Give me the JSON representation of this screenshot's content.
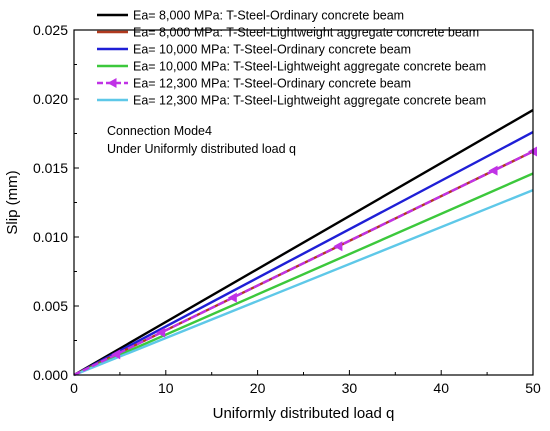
{
  "chart_data": {
    "type": "line",
    "xlabel": "Uniformly distributed load q",
    "ylabel": "Slip (mm)",
    "xlim": [
      0,
      50
    ],
    "ylim": [
      0,
      0.025
    ],
    "xticks": [
      0,
      10,
      20,
      30,
      40,
      50
    ],
    "xtick_labels": [
      "0",
      "10",
      "20",
      "30",
      "40",
      "50"
    ],
    "yticks": [
      0,
      0.005,
      0.01,
      0.015,
      0.02,
      0.025
    ],
    "ytick_labels": [
      "0.000",
      "0.005",
      "0.010",
      "0.015",
      "0.020",
      "0.025"
    ],
    "grid": false,
    "legend_position": "top",
    "annotations": [
      "Connection Mode4",
      "Under Uniformly distributed load q"
    ],
    "series": [
      {
        "name": "Ea= 8,000 MPa: T-Steel-Ordinary concrete beam",
        "color": "#000000",
        "marker": "none",
        "dashed": false,
        "x": [
          0,
          50
        ],
        "y": [
          0,
          0.0192
        ]
      },
      {
        "name": "Ea= 8,000 MPa: T-Steel-Lightweight aggregate concrete beam",
        "color": "#b03a1f",
        "marker": "none",
        "dashed": false,
        "x": [
          0,
          50
        ],
        "y": [
          0,
          0.0162
        ]
      },
      {
        "name": "Ea= 10,000 MPa: T-Steel-Ordinary concrete beam",
        "color": "#1f1fd6",
        "marker": "none",
        "dashed": false,
        "x": [
          0,
          50
        ],
        "y": [
          0,
          0.0176
        ]
      },
      {
        "name": "Ea= 10,000 MPa: T-Steel-Lightweight aggregate concrete beam",
        "color": "#3cc83c",
        "marker": "none",
        "dashed": false,
        "x": [
          0,
          50
        ],
        "y": [
          0,
          0.0146
        ]
      },
      {
        "name": "Ea= 12,300 MPa: T-Steel-Ordinary concrete beam",
        "color": "#c032e6",
        "marker": "triangle-left",
        "dashed": true,
        "x": [
          0,
          50
        ],
        "y": [
          0,
          0.0162
        ],
        "marker_x": [
          4.6,
          9.5,
          17.3,
          28.8,
          45.7,
          50
        ]
      },
      {
        "name": "Ea= 12,300 MPa: T-Steel-Lightweight aggregate concrete beam",
        "color": "#5ec8e8",
        "marker": "none",
        "dashed": false,
        "x": [
          0,
          50
        ],
        "y": [
          0,
          0.0134
        ]
      }
    ]
  }
}
